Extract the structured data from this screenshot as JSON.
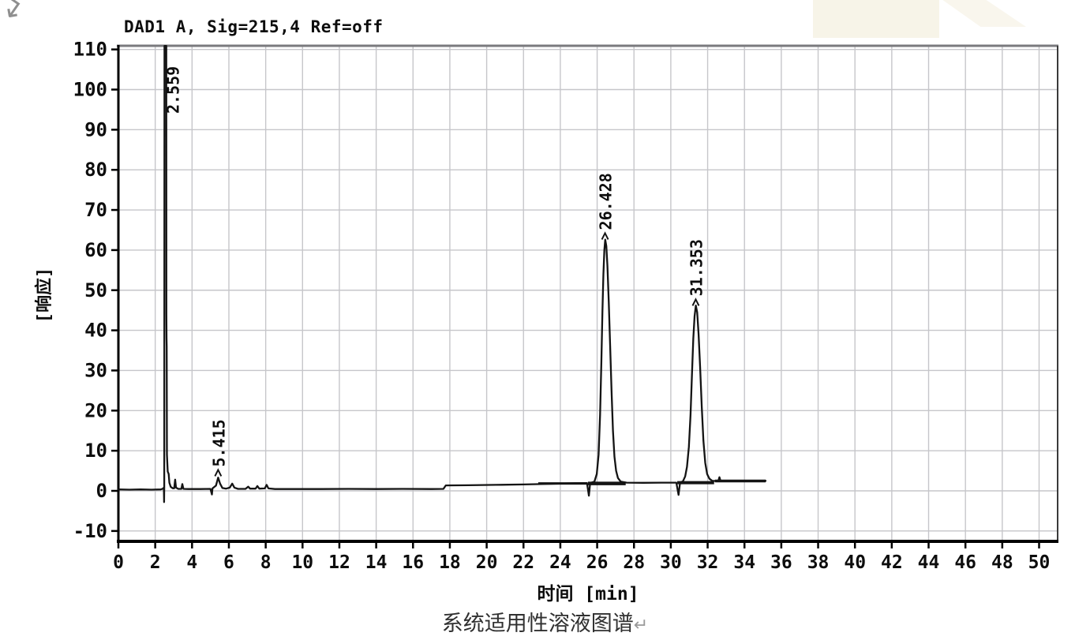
{
  "corner": {
    "mark": "↵"
  },
  "chart": {
    "title": "DAD1 A, Sig=215,4 Ref=off",
    "y_label": "[响应]",
    "x_label": "时间 [min]"
  },
  "caption": {
    "text": "系统适用性溶液图谱",
    "mark": "↵"
  },
  "colors": {
    "trace": "#141414",
    "grid": "#c6c6ca",
    "frame_top": "#7a7a7e",
    "frame_side": "#3a3a3a",
    "axis": "#000000",
    "text": "#0d0d0d",
    "background": "#ffffff",
    "watermark": "#f6f2e4"
  },
  "chart_data": {
    "type": "line",
    "title": "DAD1 A, Sig=215,4 Ref=off",
    "xlabel": "时间 [min]",
    "ylabel": "[响应]",
    "xlim": [
      0,
      51
    ],
    "ylim": [
      -12.6,
      111
    ],
    "grid": true,
    "x_ticks": [
      0,
      2,
      4,
      6,
      8,
      10,
      12,
      14,
      16,
      18,
      20,
      22,
      24,
      26,
      28,
      30,
      32,
      34,
      36,
      38,
      40,
      42,
      44,
      46,
      48,
      50
    ],
    "y_ticks": [
      -10,
      0,
      10,
      20,
      30,
      40,
      50,
      60,
      70,
      80,
      90,
      100,
      110
    ],
    "peaks": [
      {
        "label": "2.559",
        "rt": 2.559,
        "height_note": "off-scale, clipped at top (>110)"
      },
      {
        "label": "5.415",
        "rt": 5.415,
        "height": 3.3
      },
      {
        "label": "26.428",
        "rt": 26.428,
        "height": 62.6
      },
      {
        "label": "31.353",
        "rt": 31.353,
        "height": 46.2
      }
    ],
    "baseline_marks": [
      [
        22.8,
        25.45,
        1.85,
        3
      ],
      [
        25.5,
        27.55,
        1.85,
        4.5
      ],
      [
        30.35,
        32.35,
        2.05,
        4
      ],
      [
        32.4,
        35.15,
        2.45,
        3.5
      ]
    ],
    "trace": [
      [
        0,
        0.35
      ],
      [
        0.6,
        0.3
      ],
      [
        1.2,
        0.35
      ],
      [
        1.8,
        0.3
      ],
      [
        2.3,
        0.35
      ],
      [
        2.42,
        0.55
      ],
      [
        2.47,
        0.8
      ],
      [
        2.48,
        -2.8
      ],
      [
        2.49,
        0.8
      ],
      [
        2.495,
        37
      ],
      [
        2.505,
        110.9
      ],
      [
        2.6,
        110.9
      ],
      [
        2.607,
        44
      ],
      [
        2.615,
        38
      ],
      [
        2.622,
        36
      ],
      [
        2.635,
        9
      ],
      [
        2.68,
        4.8
      ],
      [
        2.73,
        4.2
      ],
      [
        2.77,
        2.0
      ],
      [
        2.84,
        1.0
      ],
      [
        2.95,
        0.65
      ],
      [
        3.03,
        0.65
      ],
      [
        3.08,
        2.8
      ],
      [
        3.13,
        0.8
      ],
      [
        3.25,
        0.5
      ],
      [
        3.42,
        0.5
      ],
      [
        3.47,
        1.7
      ],
      [
        3.53,
        0.5
      ],
      [
        3.8,
        0.45
      ],
      [
        4.4,
        0.45
      ],
      [
        5.0,
        0.5
      ],
      [
        5.08,
        -0.9
      ],
      [
        5.11,
        0.6
      ],
      [
        5.3,
        1.3
      ],
      [
        5.42,
        3.3
      ],
      [
        5.52,
        1.8
      ],
      [
        5.65,
        0.7
      ],
      [
        5.85,
        0.55
      ],
      [
        6.05,
        0.8
      ],
      [
        6.18,
        1.8
      ],
      [
        6.3,
        0.8
      ],
      [
        6.5,
        0.5
      ],
      [
        6.9,
        0.5
      ],
      [
        7.05,
        1.05
      ],
      [
        7.15,
        0.55
      ],
      [
        7.45,
        0.55
      ],
      [
        7.55,
        1.2
      ],
      [
        7.65,
        0.55
      ],
      [
        7.95,
        0.6
      ],
      [
        8.05,
        1.5
      ],
      [
        8.15,
        0.6
      ],
      [
        8.5,
        0.45
      ],
      [
        9.5,
        0.45
      ],
      [
        11,
        0.45
      ],
      [
        12.5,
        0.5
      ],
      [
        14,
        0.45
      ],
      [
        15.5,
        0.5
      ],
      [
        17,
        0.45
      ],
      [
        17.65,
        0.5
      ],
      [
        17.78,
        1.35
      ],
      [
        19,
        1.4
      ],
      [
        20.5,
        1.5
      ],
      [
        22,
        1.6
      ],
      [
        23.5,
        1.75
      ],
      [
        24.8,
        1.9
      ],
      [
        25.45,
        1.95
      ],
      [
        25.55,
        -1.2
      ],
      [
        25.62,
        1.95
      ],
      [
        25.85,
        2.3
      ],
      [
        25.98,
        4.2
      ],
      [
        26.08,
        9
      ],
      [
        26.16,
        19
      ],
      [
        26.23,
        32
      ],
      [
        26.29,
        45
      ],
      [
        26.34,
        54
      ],
      [
        26.39,
        60
      ],
      [
        26.44,
        62.6
      ],
      [
        26.5,
        61
      ],
      [
        26.56,
        56
      ],
      [
        26.63,
        47
      ],
      [
        26.7,
        37
      ],
      [
        26.78,
        25
      ],
      [
        26.86,
        15
      ],
      [
        26.94,
        8.5
      ],
      [
        27.03,
        5
      ],
      [
        27.13,
        3.2
      ],
      [
        27.28,
        2.3
      ],
      [
        27.6,
        2.05
      ],
      [
        28.5,
        2.0
      ],
      [
        29.5,
        2.05
      ],
      [
        30.3,
        2.05
      ],
      [
        30.42,
        -1.0
      ],
      [
        30.5,
        2.05
      ],
      [
        30.66,
        2.4
      ],
      [
        30.78,
        3.6
      ],
      [
        30.88,
        6
      ],
      [
        30.98,
        11
      ],
      [
        31.07,
        19
      ],
      [
        31.15,
        29
      ],
      [
        31.22,
        38
      ],
      [
        31.29,
        43.5
      ],
      [
        31.36,
        46.2
      ],
      [
        31.43,
        44.5
      ],
      [
        31.51,
        39
      ],
      [
        31.59,
        31
      ],
      [
        31.68,
        21
      ],
      [
        31.77,
        12.5
      ],
      [
        31.87,
        7
      ],
      [
        31.97,
        4.2
      ],
      [
        32.1,
        3.0
      ],
      [
        32.25,
        2.5
      ],
      [
        32.45,
        2.45
      ],
      [
        32.58,
        2.45
      ],
      [
        32.64,
        3.4
      ],
      [
        32.7,
        2.45
      ],
      [
        33.2,
        2.45
      ],
      [
        34,
        2.5
      ],
      [
        34.7,
        2.45
      ],
      [
        35.15,
        2.5
      ]
    ]
  }
}
